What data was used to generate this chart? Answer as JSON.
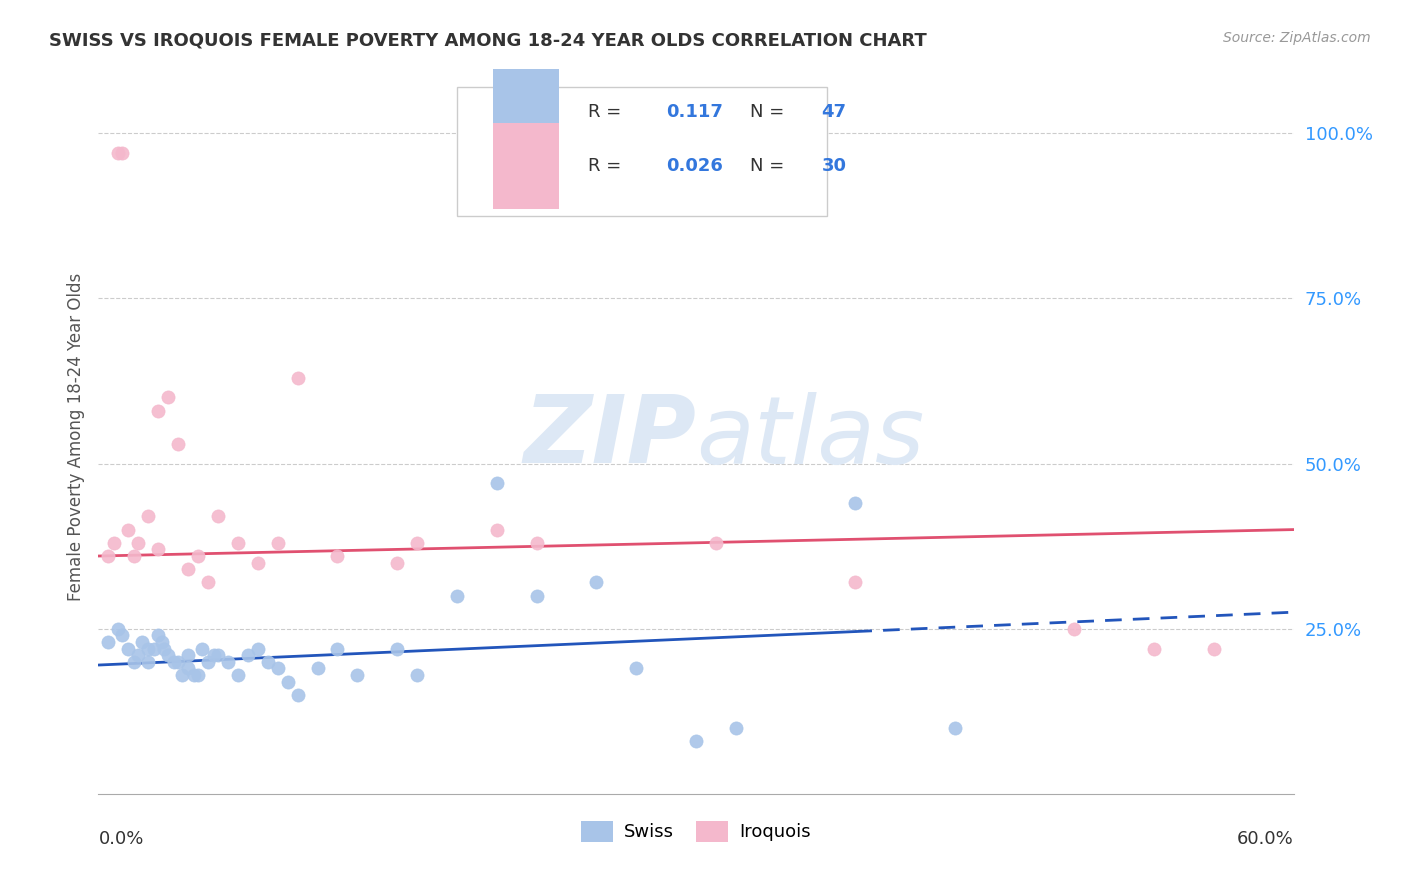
{
  "title": "SWISS VS IROQUOIS FEMALE POVERTY AMONG 18-24 YEAR OLDS CORRELATION CHART",
  "source": "Source: ZipAtlas.com",
  "ylabel": "Female Poverty Among 18-24 Year Olds",
  "xlim": [
    0.0,
    0.6
  ],
  "ylim": [
    0.0,
    1.08
  ],
  "ytick_labels": [
    "100.0%",
    "75.0%",
    "50.0%",
    "25.0%"
  ],
  "ytick_values": [
    1.0,
    0.75,
    0.5,
    0.25
  ],
  "swiss_R": 0.117,
  "swiss_N": 47,
  "iroquois_R": 0.026,
  "iroquois_N": 30,
  "swiss_color": "#a8c4e8",
  "iroquois_color": "#f4b8cc",
  "swiss_line_color": "#2255bb",
  "iroquois_line_color": "#e05070",
  "watermark_color": "#dde8f5",
  "legend_color": "#3377dd",
  "swiss_x": [
    0.005,
    0.01,
    0.012,
    0.015,
    0.018,
    0.02,
    0.022,
    0.025,
    0.025,
    0.028,
    0.03,
    0.032,
    0.033,
    0.035,
    0.038,
    0.04,
    0.042,
    0.045,
    0.045,
    0.048,
    0.05,
    0.052,
    0.055,
    0.058,
    0.06,
    0.065,
    0.07,
    0.075,
    0.08,
    0.085,
    0.09,
    0.095,
    0.1,
    0.11,
    0.12,
    0.13,
    0.15,
    0.16,
    0.18,
    0.2,
    0.22,
    0.25,
    0.27,
    0.3,
    0.32,
    0.38,
    0.43
  ],
  "swiss_y": [
    0.23,
    0.25,
    0.24,
    0.22,
    0.2,
    0.21,
    0.23,
    0.22,
    0.2,
    0.22,
    0.24,
    0.23,
    0.22,
    0.21,
    0.2,
    0.2,
    0.18,
    0.19,
    0.21,
    0.18,
    0.18,
    0.22,
    0.2,
    0.21,
    0.21,
    0.2,
    0.18,
    0.21,
    0.22,
    0.2,
    0.19,
    0.17,
    0.15,
    0.19,
    0.22,
    0.18,
    0.22,
    0.18,
    0.3,
    0.47,
    0.3,
    0.32,
    0.19,
    0.08,
    0.1,
    0.44,
    0.1
  ],
  "iroquois_x": [
    0.005,
    0.008,
    0.01,
    0.012,
    0.015,
    0.018,
    0.02,
    0.025,
    0.03,
    0.03,
    0.035,
    0.04,
    0.045,
    0.05,
    0.055,
    0.06,
    0.07,
    0.08,
    0.09,
    0.1,
    0.12,
    0.15,
    0.16,
    0.2,
    0.22,
    0.31,
    0.38,
    0.49,
    0.53,
    0.56
  ],
  "iroquois_y": [
    0.36,
    0.38,
    0.97,
    0.97,
    0.4,
    0.36,
    0.38,
    0.42,
    0.37,
    0.58,
    0.6,
    0.53,
    0.34,
    0.36,
    0.32,
    0.42,
    0.38,
    0.35,
    0.38,
    0.63,
    0.36,
    0.35,
    0.38,
    0.4,
    0.38,
    0.38,
    0.32,
    0.25,
    0.22,
    0.22
  ],
  "swiss_trendline_x": [
    0.0,
    0.6
  ],
  "swiss_trendline_y": [
    0.195,
    0.275
  ],
  "iroquois_trendline_x": [
    0.0,
    0.6
  ],
  "iroquois_trendline_y": [
    0.36,
    0.4
  ],
  "trendline_cutoff": 0.38
}
